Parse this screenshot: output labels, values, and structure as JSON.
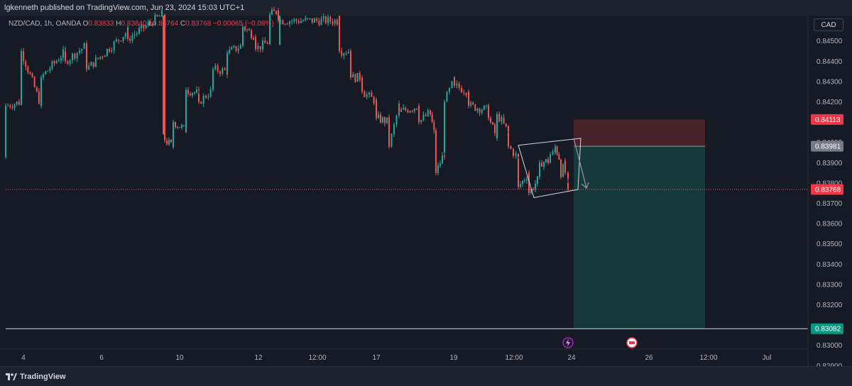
{
  "header": {
    "publisher_text": "lgkenneth published on TradingView.com, Jun 23, 2024 15:03 UTC+1"
  },
  "legend": {
    "symbol": "NZD/CAD, 1h, OANDA",
    "o_label": "O",
    "o_value": "0.83833",
    "h_label": "H",
    "h_value": "0.83840",
    "l_label": "L",
    "l_value": "0.83764",
    "c_label": "C",
    "c_value": "0.83768",
    "change": "−0.00065 (−0.08%)"
  },
  "currency_button": {
    "label": "CAD"
  },
  "footer": {
    "brand": "TradingView"
  },
  "colors": {
    "bullish": "#26a69a",
    "bearish": "#ef5350",
    "stop_zone": "#4a2329",
    "target_zone": "#163b3b",
    "stop_badge": "#f23645",
    "entry_badge": "#787b86",
    "current_badge": "#f23645",
    "target_badge": "#089981"
  },
  "chart_data": {
    "type": "candlestick",
    "symbol": "NZD/CAD",
    "interval": "1h",
    "source": "OANDA",
    "y_axis": {
      "ticks": [
        "0.84500",
        "0.84400",
        "0.84300",
        "0.84200",
        "0.84000",
        "0.83900",
        "0.83800",
        "0.83700",
        "0.83600",
        "0.83500",
        "0.83400",
        "0.83300",
        "0.83200",
        "0.83000",
        "0.82900"
      ],
      "range": [
        0.8284,
        0.8463
      ]
    },
    "x_axis": {
      "ticks": [
        "4",
        "6",
        "10",
        "12",
        "12:00",
        "17",
        "19",
        "12:00",
        "24",
        "26",
        "12:00",
        "Jul"
      ]
    },
    "price_path": [
      [
        0.8393,
        0.8418
      ],
      [
        0.842,
        0.8445
      ],
      [
        0.8418,
        0.8432
      ],
      [
        0.8445,
        0.844
      ],
      [
        0.8448,
        0.8436
      ],
      [
        0.8455,
        0.8451
      ],
      [
        0.8463,
        0.8463
      ],
      [
        0.8458,
        0.8401
      ],
      [
        0.8398,
        0.841
      ],
      [
        0.8406,
        0.8426
      ],
      [
        0.8424,
        0.842
      ],
      [
        0.8426,
        0.8436
      ],
      [
        0.8435,
        0.8444
      ],
      [
        0.8448,
        0.8457
      ],
      [
        0.8452,
        0.8446
      ],
      [
        0.845,
        0.8463
      ],
      [
        0.8465,
        0.846
      ],
      [
        0.846,
        0.8445
      ],
      [
        0.8445,
        0.8432
      ],
      [
        0.8432,
        0.8425
      ],
      [
        0.842,
        0.8412
      ],
      [
        0.841,
        0.8398
      ],
      [
        0.8418,
        0.8415
      ],
      [
        0.8418,
        0.841
      ],
      [
        0.8415,
        0.8414
      ],
      [
        0.84,
        0.8385
      ],
      [
        0.8395,
        0.842
      ],
      [
        0.8431,
        0.8428
      ],
      [
        0.8425,
        0.8418
      ],
      [
        0.8416,
        0.8412
      ],
      [
        0.8402,
        0.8414
      ],
      [
        0.8405,
        0.8398
      ],
      [
        0.8392,
        0.8378
      ],
      [
        0.8385,
        0.8375
      ],
      [
        0.8383,
        0.839
      ],
      [
        0.8391,
        0.8394
      ],
      [
        0.8395,
        0.8398
      ],
      [
        0.839,
        0.8383
      ],
      [
        0.8391,
        0.8385
      ],
      [
        0.838,
        0.83768
      ]
    ],
    "series": [
      {
        "name": "",
        "type": "horizontal-line",
        "value": 0.83768
      },
      {
        "name": "",
        "type": "horizontal-line",
        "value": 0.83082
      }
    ],
    "price_labels": [
      {
        "value": 0.84113,
        "text": "0.84113",
        "kind": "stop"
      },
      {
        "value": 0.83981,
        "text": "0.83981",
        "kind": "entry"
      },
      {
        "value": 0.83768,
        "text": "0.83768",
        "kind": "current"
      },
      {
        "value": 0.83082,
        "text": "0.83082",
        "kind": "target"
      }
    ],
    "position": {
      "direction": "short",
      "entry": 0.83981,
      "stop": 0.84113,
      "target": 0.83082
    },
    "annotations": [
      {
        "type": "flag-channel",
        "upper": [
          0.83986,
          0.8402
        ],
        "lower": [
          0.83728,
          0.83768
        ]
      },
      {
        "type": "arrow",
        "from": 0.8402,
        "to": 0.83775
      }
    ],
    "event_icons": [
      "lightning-event",
      "canada-flag-event"
    ],
    "grid": false
  }
}
